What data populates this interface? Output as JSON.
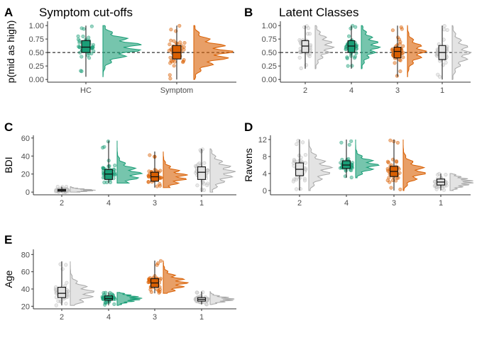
{
  "chart_data": [
    {
      "panel": "A",
      "title": "Symptom cut-offs",
      "type": "raincloud",
      "xlabel": "",
      "ylabel": "p(mid as high)",
      "ylim": [
        -0.05,
        1.08
      ],
      "yticks": [
        0.0,
        0.25,
        0.5,
        0.75,
        1.0
      ],
      "ytick_labels": [
        "0.00",
        "0.25",
        "0.50",
        "0.75",
        "1.00"
      ],
      "reference_line": 0.5,
      "categories": [
        "HC",
        "Symptom"
      ],
      "colors": [
        "#1b9e77",
        "#d95f02"
      ],
      "boxes": [
        {
          "min": 0.05,
          "q1": 0.5,
          "median": 0.6,
          "q3": 0.72,
          "max": 1.0
        },
        {
          "min": 0.0,
          "q1": 0.38,
          "median": 0.5,
          "q3": 0.63,
          "max": 1.0
        }
      ]
    },
    {
      "panel": "B",
      "title": "Latent Classes",
      "type": "raincloud",
      "xlabel": "",
      "ylabel": "",
      "ylim": [
        -0.05,
        1.08
      ],
      "yticks": [
        0.0,
        0.25,
        0.5,
        0.75,
        1.0
      ],
      "ytick_labels": [
        "0.00",
        "0.25",
        "0.50",
        "0.75",
        "1.00"
      ],
      "reference_line": 0.5,
      "categories": [
        "2",
        "4",
        "3",
        "1"
      ],
      "colors": [
        "#d0d0d0",
        "#1b9e77",
        "#d95f02",
        "#d0d0d0"
      ],
      "boxes": [
        {
          "min": 0.2,
          "q1": 0.5,
          "median": 0.62,
          "q3": 0.72,
          "max": 1.0
        },
        {
          "min": 0.2,
          "q1": 0.5,
          "median": 0.62,
          "q3": 0.72,
          "max": 1.0
        },
        {
          "min": 0.05,
          "q1": 0.4,
          "median": 0.52,
          "q3": 0.6,
          "max": 1.0
        },
        {
          "min": 0.0,
          "q1": 0.37,
          "median": 0.5,
          "q3": 0.63,
          "max": 1.0
        }
      ]
    },
    {
      "panel": "C",
      "title": "",
      "type": "raincloud",
      "xlabel": "",
      "ylabel": "BDI",
      "ylim": [
        -3,
        63
      ],
      "yticks": [
        0,
        20,
        40,
        60
      ],
      "ytick_labels": [
        "0",
        "20",
        "40",
        "60"
      ],
      "categories": [
        "2",
        "4",
        "3",
        "1"
      ],
      "colors": [
        "#d0d0d0",
        "#1b9e77",
        "#d95f02",
        "#d0d0d0"
      ],
      "boxes": [
        {
          "min": 0,
          "q1": 1,
          "median": 2,
          "q3": 3,
          "max": 6
        },
        {
          "min": 10,
          "q1": 14,
          "median": 20,
          "q3": 25,
          "max": 57
        },
        {
          "min": 5,
          "q1": 12,
          "median": 17,
          "q3": 22,
          "max": 45
        },
        {
          "min": 0,
          "q1": 14,
          "median": 22,
          "q3": 28,
          "max": 48
        }
      ]
    },
    {
      "panel": "D",
      "title": "",
      "type": "raincloud",
      "xlabel": "",
      "ylabel": "Ravens",
      "ylim": [
        -1,
        13
      ],
      "yticks": [
        0,
        4,
        8,
        12
      ],
      "ytick_labels": [
        "0",
        "4",
        "8",
        "12"
      ],
      "categories": [
        "2",
        "4",
        "3",
        "1"
      ],
      "colors": [
        "#d0d0d0",
        "#1b9e77",
        "#d95f02",
        "#d0d0d0"
      ],
      "boxes": [
        {
          "min": 0,
          "q1": 3.5,
          "median": 5,
          "q3": 6.5,
          "max": 12
        },
        {
          "min": 3,
          "q1": 5.2,
          "median": 6,
          "q3": 7,
          "max": 12
        },
        {
          "min": 0,
          "q1": 3.3,
          "median": 4.5,
          "q3": 5.7,
          "max": 12
        },
        {
          "min": 0,
          "q1": 1.3,
          "median": 2,
          "q3": 2.7,
          "max": 4
        }
      ]
    },
    {
      "panel": "E",
      "title": "",
      "type": "raincloud",
      "xlabel": "",
      "ylabel": "Age",
      "ylim": [
        17,
        86
      ],
      "yticks": [
        20,
        40,
        60,
        80
      ],
      "ytick_labels": [
        "20",
        "40",
        "60",
        "80"
      ],
      "categories": [
        "2",
        "4",
        "3",
        "1"
      ],
      "colors": [
        "#d0d0d0",
        "#1b9e77",
        "#d95f02",
        "#d0d0d0"
      ],
      "boxes": [
        {
          "min": 21,
          "q1": 30,
          "median": 35,
          "q3": 42,
          "max": 72
        },
        {
          "min": 21,
          "q1": 27,
          "median": 29,
          "q3": 32,
          "max": 36
        },
        {
          "min": 35,
          "q1": 42,
          "median": 47,
          "q3": 52,
          "max": 73
        },
        {
          "min": 22,
          "q1": 26,
          "median": 28,
          "q3": 30,
          "max": 37
        }
      ]
    }
  ]
}
